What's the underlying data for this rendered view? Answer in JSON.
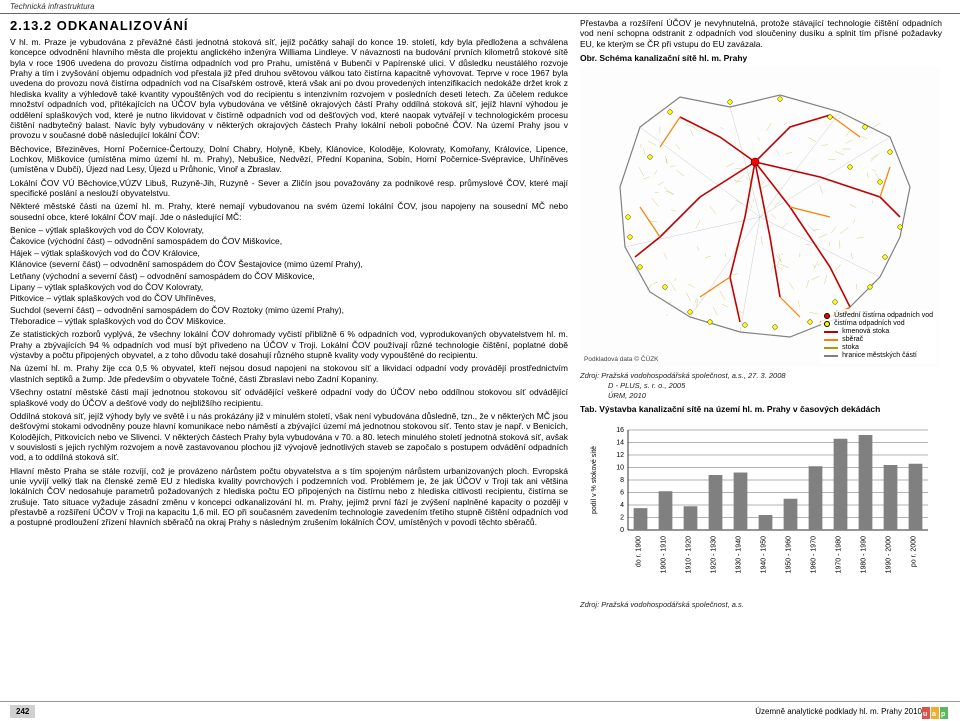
{
  "header": {
    "category": "Technická infrastruktura"
  },
  "section": {
    "number": "2.13.2",
    "title": "ODKANALIZOVÁNÍ"
  },
  "body": {
    "p1": "V hl. m. Praze je vybudována z převážné části jednotná stoková síť, jejíž počátky sahají do konce 19. století, kdy byla předložena a schválena koncepce odvodnění hlavního města dle projektu anglického inženýra Williama Lindleye. V návaznosti na budování prvních kilometrů stokové sítě byla v roce 1906 uvedena do provozu čistírna odpadních vod pro Prahu, umístěná v Bubenči v Papírenské ulici. V důsledku neustálého rozvoje Prahy a tím i zvyšování objemu odpadních vod přestala již před druhou světovou válkou tato čistírna kapacitně vyhovovat. Teprve v roce 1967 byla uvedena do provozu nová čistírna odpadních vod na Císařském ostrově, která však ani po dvou provedených intenzifikacích nedokáže držet krok z hlediska kvality a výhledově také kvantity vypouštěných vod do recipientu s intenzivním rozvojem v posledních deseti letech. Za účelem redukce množství odpadních vod, přitékajících na ÚČOV byla vybudována ve většině okrajových částí Prahy oddílná stoková síť, jejíž hlavní výhodou je oddělení splaškových vod, které je nutno likvidovat v čistírně odpadních vod od dešťových vod, které naopak vytvářejí v technologickém procesu čištění nadbytečný balast. Navíc byly vybudovány v některých okrajových částech Prahy lokální neboli pobočné ČOV. Na území Prahy jsou v provozu v současné době následující lokální ČOV:",
    "p2": "Běchovice, Březiněves, Horní Počernice-Čertouzy, Dolní Chabry, Holyně, Kbely, Klánovice, Koloděje, Kolovraty, Komořany, Královice, Lipence, Lochkov, Miškovice (umístěna mimo území hl. m. Prahy), Nebušice, Nedvězí, Přední Kopanina, Sobín, Horní Počernice-Svépravice, Uhříněves (umístěna v Dubči), Újezd nad Lesy, Újezd u Průhonic, Vinoř a Zbraslav.",
    "p3": "Lokální ČOV VÚ Běchovice,VÚZV Libuš, Ruzyně-Jih, Ruzyně - Sever a Zličín jsou považovány za podnikové resp. průmyslové ČOV, které mají specifické poslání a neslouží obyvatelstvu.",
    "p4": "Některé městské části na území hl. m. Prahy, které nemají vybudovanou na svém území lokální ČOV, jsou napojeny na sousední MČ nebo sousední obce, které lokální ČOV mají. Jde o následující MČ:",
    "mclist": [
      "Benice – výtlak splaškových vod do ČOV Kolovraty,",
      "Čakovice (východní část) – odvodnění samospádem do ČOV Miškovice,",
      "Hájek – výtlak splaškových vod do ČOV Královice,",
      "Klánovice (severní část) – odvodnění samospádem do ČOV Šestajovice (mimo území Prahy),",
      "Letňany (východní a severní část) – odvodnění samospádem do ČOV Miškovice,",
      "Lipany – výtlak splaškových vod do ČOV Kolovraty,",
      "Pitkovice – výtlak splaškových vod do ČOV Uhříněves,",
      "Suchdol (severní část) – odvodnění samospádem do ČOV Roztoky (mimo území Prahy),",
      "Třeboradice – výtlak splaškových vod do ČOV Miškovice."
    ],
    "p5": "Ze statistických rozborů vyplývá, že všechny lokální ČOV dohromady vyčistí přibližně 6 % odpadních vod, vyprodukovaných obyvatelstvem hl. m. Prahy a zbývajících 94 % odpadních vod musí být přivedeno na ÚČOV v Troji. Lokální ČOV používají různé technologie čištění, poplatné době výstavby a počtu připojených obyvatel, a z toho důvodu také dosahují různého stupně kvality vody vypouštěné do recipientu.",
    "p6": "Na území hl. m. Prahy žije cca 0,5 % obyvatel, kteří nejsou dosud napojeni na stokovou síť a likvidaci odpadní vody provádějí prostřednictvím vlastních septiků a žump. Jde především o obyvatele Točné, části Zbraslavi nebo Zadní Kopaniny.",
    "p7": "Všechny ostatní městské části mají jednotnou stokovou síť odvádějící veškeré odpadní vody do ÚČOV nebo oddílnou stokovou síť odvádějící splaškové vody do ÚČOV a dešťové vody do nejbližšího recipientu.",
    "p8": "Oddílná stoková síť, jejíž výhody byly ve světě i u nás prokázány již v minulém století, však není vybudována důsledně, tzn., že v některých MČ jsou dešťovými stokami odvodněny pouze hlavní komunikace nebo náměstí a zbývající území má jednotnou stokovou síť. Tento stav je např. v Benicích, Kolodějích, Pitkovicích nebo ve Slivenci. V některých částech Prahy byla vybudována v 70. a 80. letech minulého století jednotná stoková síť, avšak v souvislosti s jejich rychlým rozvojem a nově zastavovanou plochou již vývojově jednotlivých staveb se započalo s postupem odvádění odpadních vod, a to oddílná stoková síť.",
    "p9": "Hlavní město Praha se stále rozvíjí, což je provázeno nárůstem počtu obyvatelstva a s tím spojeným nárůstem urbanizovaných ploch. Evropská unie vyvíjí velký tlak na členské země EU z hlediska kvality povrchových i podzemních vod. Problémem je, že jak ÚČOV v Troji tak ani většina lokálních ČOV nedosahuje parametrů požadovaných z hlediska počtu EO připojených na čistírnu nebo z hlediska citlivosti recipientu, čistírna se zrušuje. Tato situace vyžaduje zásadní změnu v koncepci odkanalizování hl. m. Prahy, jejímž první fází je zvýšení naplněné kapacity o později v přestavbě a rozšíření ÚČOV v Troji na kapacitu 1,6 mil. EO při současném zavedením technologie zavedením třetího stupně čištění odpadních vod a postupné prodloužení zřízení hlavních sběračů na okraj Prahy s následným zrušením lokálních ČOV, umístěných v povodí těchto sběračů.",
    "right_intro": "Přestavba a rozšíření ÚČOV je nevyhnutelná, protože stávající technologie čištění odpadních vod není schopna odstranit z odpadních vod sloučeniny dusíku a splnit tím přísné požadavky EU, ke kterým se ČR při vstupu do EU zavázala."
  },
  "map": {
    "caption": "Obr. Schéma kanalizační sítě hl. m. Prahy",
    "boundary_color": "#808080",
    "kmen_color": "#c00000",
    "sberac_color": "#ff7f00",
    "stoka_color": "#a0a000",
    "ucov_fill": "#ff0000",
    "cov_fill": "#ffff00",
    "background": "#fdfdfd",
    "source_label": "Podkladová data © ČÚZK",
    "legend": [
      {
        "label": "Ústřední čistírna odpadních vod",
        "type": "dot",
        "color": "#ff0000"
      },
      {
        "label": "čistírna odpadních vod",
        "type": "dot",
        "color": "#ffff00"
      },
      {
        "label": "kmenová stoka",
        "type": "line",
        "color": "#c00000"
      },
      {
        "label": "sběrač",
        "type": "line",
        "color": "#ff7f00"
      },
      {
        "label": "stoka",
        "type": "line",
        "color": "#a0a000"
      },
      {
        "label": "hranice městských částí",
        "type": "line",
        "color": "#808080"
      }
    ]
  },
  "map_source": {
    "l1": "Zdroj: Pražská vodohospodářská společnost, a.s., 27. 3. 2008",
    "l2": "D - PLUS, s. r. o., 2005",
    "l3": "ÚRM, 2010"
  },
  "chart": {
    "caption": "Tab. Výstavba kanalizační sítě na území hl. m. Prahy v časových dekádách",
    "type": "bar",
    "ylabel": "podíl v % stokové sítě",
    "ylim": [
      0,
      16
    ],
    "ytick_step": 2,
    "categories": [
      "do r. 1900",
      "1900 - 1910",
      "1910 - 1920",
      "1920 - 1930",
      "1930 - 1940",
      "1940 - 1950",
      "1950 - 1960",
      "1960 - 1970",
      "1970 - 1980",
      "1980 - 1990",
      "1990 - 2000",
      "po r. 2000"
    ],
    "values": [
      3.5,
      6.2,
      3.8,
      8.8,
      9.2,
      2.4,
      5.0,
      10.2,
      14.6,
      15.2,
      10.4,
      10.6
    ],
    "bar_color": "#808080",
    "grid_color": "#000000",
    "axis_color": "#000000",
    "background": "#ffffff",
    "bar_width": 0.55,
    "label_fontsize": 7,
    "tick_fontsize": 7
  },
  "chart_source": "Zdroj: Pražská vodohospodářská společnost, a.s.",
  "footer": {
    "page": "242",
    "doc": "Územně analytické podklady hl. m. Prahy 2010",
    "logo_text": "uap"
  },
  "colors": {
    "logo_red": "#d9534f",
    "logo_yellow": "#f0ad2e",
    "logo_green": "#5cb85c"
  }
}
